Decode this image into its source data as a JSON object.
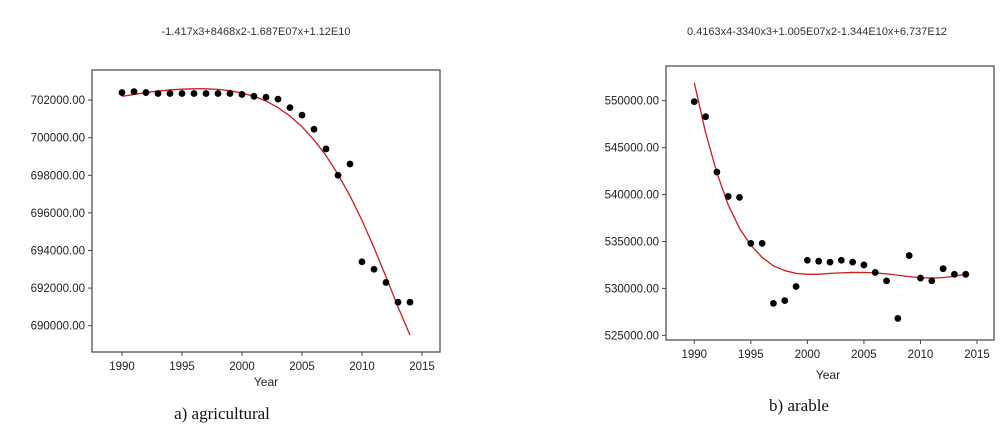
{
  "figure": {
    "colors": {
      "points": "#000000",
      "curve": "#d11a1a",
      "frame": "#444444"
    }
  },
  "chart_data": [
    {
      "type": "scatter",
      "equation": "-1.417x3+8468x2-1.687E07x+1.12E10",
      "caption": "a) agricultural",
      "xlabel": "Year",
      "ylabel": "",
      "xlim": [
        1987.5,
        2016.5
      ],
      "ylim": [
        688600,
        703600
      ],
      "xticks": [
        1990,
        1995,
        2000,
        2005,
        2010,
        2015
      ],
      "xtick_labels": [
        "1990",
        "1995",
        "2000",
        "2005",
        "2010",
        "2015"
      ],
      "yticks": [
        690000,
        692000,
        694000,
        696000,
        698000,
        700000,
        702000
      ],
      "ytick_labels": [
        "690000.00",
        "692000.00",
        "694000.00",
        "696000.00",
        "698000.00",
        "700000.00",
        "702000.00"
      ],
      "points": {
        "x": [
          1990,
          1991,
          1992,
          1993,
          1994,
          1995,
          1996,
          1997,
          1998,
          1999,
          2000,
          2001,
          2002,
          2003,
          2004,
          2005,
          2006,
          2007,
          2008,
          2009,
          2010,
          2011,
          2012,
          2013,
          2014
        ],
        "y": [
          702400,
          702450,
          702400,
          702350,
          702350,
          702350,
          702350,
          702350,
          702350,
          702350,
          702300,
          702200,
          702150,
          702050,
          701600,
          701200,
          700450,
          699400,
          698000,
          698600,
          693400,
          693000,
          692300,
          691250,
          691250
        ]
      },
      "trend": {
        "x": [
          1990,
          1991,
          1992,
          1993,
          1994,
          1995,
          1996,
          1997,
          1998,
          1999,
          2000,
          2001,
          2002,
          2003,
          2004,
          2005,
          2006,
          2007,
          2008,
          2009,
          2010,
          2011,
          2012,
          2013,
          2014
        ],
        "y": [
          702200,
          702300,
          702400,
          702480,
          702540,
          702580,
          702600,
          702600,
          702570,
          702500,
          702380,
          702200,
          701950,
          701600,
          701150,
          700580,
          699880,
          699050,
          698050,
          696900,
          695600,
          694150,
          692600,
          691000,
          689500
        ]
      }
    },
    {
      "type": "scatter",
      "equation": "0.4163x4-3340x3+1.005E07x2-1.344E10x+6.737E12",
      "caption": "b) arable",
      "xlabel": "Year",
      "ylabel": "",
      "xlim": [
        1987.5,
        2016.5
      ],
      "ylim": [
        524500,
        553700
      ],
      "xticks": [
        1990,
        1995,
        2000,
        2005,
        2010,
        2015
      ],
      "xtick_labels": [
        "1990",
        "1995",
        "2000",
        "2005",
        "2010",
        "2015"
      ],
      "yticks": [
        525000,
        530000,
        535000,
        540000,
        545000,
        550000
      ],
      "ytick_labels": [
        "525000.00",
        "530000.00",
        "535000.00",
        "540000.00",
        "545000.00",
        "550000.00"
      ],
      "points": {
        "x": [
          1990,
          1991,
          1992,
          1993,
          1994,
          1995,
          1996,
          1997,
          1998,
          1999,
          2000,
          2001,
          2002,
          2003,
          2004,
          2005,
          2006,
          2007,
          2008,
          2009,
          2010,
          2011,
          2012,
          2013,
          2014
        ],
        "y": [
          549900,
          548300,
          542400,
          539800,
          539700,
          534800,
          534800,
          528400,
          528700,
          530200,
          533000,
          532900,
          532800,
          533000,
          532800,
          532500,
          531700,
          530800,
          526800,
          533500,
          531100,
          530800,
          532100,
          531500,
          531500
        ]
      },
      "trend": {
        "x": [
          1990,
          1991,
          1992,
          1993,
          1994,
          1995,
          1996,
          1997,
          1998,
          1999,
          2000,
          2001,
          2002,
          2003,
          2004,
          2005,
          2006,
          2007,
          2008,
          2009,
          2010,
          2011,
          2012,
          2013,
          2014
        ],
        "y": [
          551900,
          546600,
          542300,
          538900,
          536400,
          534600,
          533300,
          532400,
          531900,
          531600,
          531500,
          531500,
          531600,
          531650,
          531700,
          531700,
          531650,
          531550,
          531400,
          531250,
          531150,
          531100,
          531150,
          531300,
          531500
        ]
      }
    }
  ]
}
